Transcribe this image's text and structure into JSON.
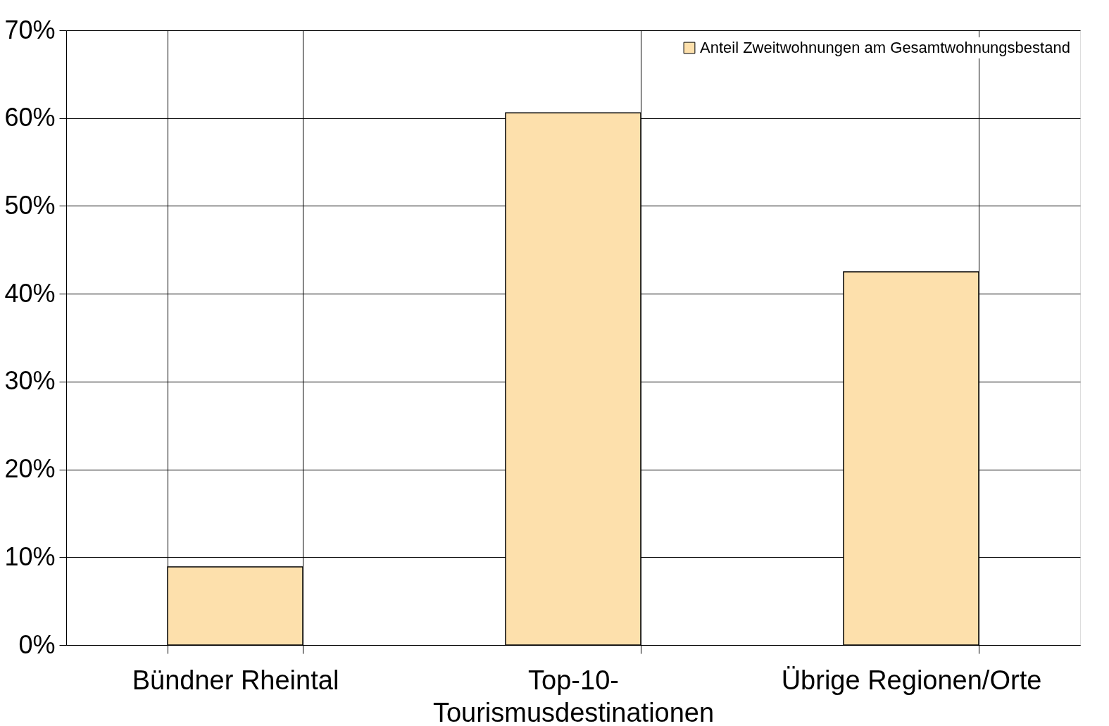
{
  "chart_data": {
    "type": "bar",
    "categories": [
      "Bündner Rheintal",
      "Top-10-Tourismusdestinationen",
      "Übrige Regionen/Orte"
    ],
    "series": [
      {
        "name": "Anteil Zweitwohnungen am Gesamtwohnungsbestand",
        "color": "#fde0ac",
        "values": [
          8.9,
          60.6,
          42.5
        ]
      }
    ],
    "ylim": [
      0,
      70
    ],
    "yticks": [
      {
        "value": 0,
        "label": "0%"
      },
      {
        "value": 10,
        "label": "10%"
      },
      {
        "value": 20,
        "label": "20%"
      },
      {
        "value": 30,
        "label": "30%"
      },
      {
        "value": 40,
        "label": "40%"
      },
      {
        "value": 50,
        "label": "50%"
      },
      {
        "value": 60,
        "label": "60%"
      },
      {
        "value": 70,
        "label": "70%"
      }
    ],
    "grid": true,
    "legend": "top right"
  }
}
